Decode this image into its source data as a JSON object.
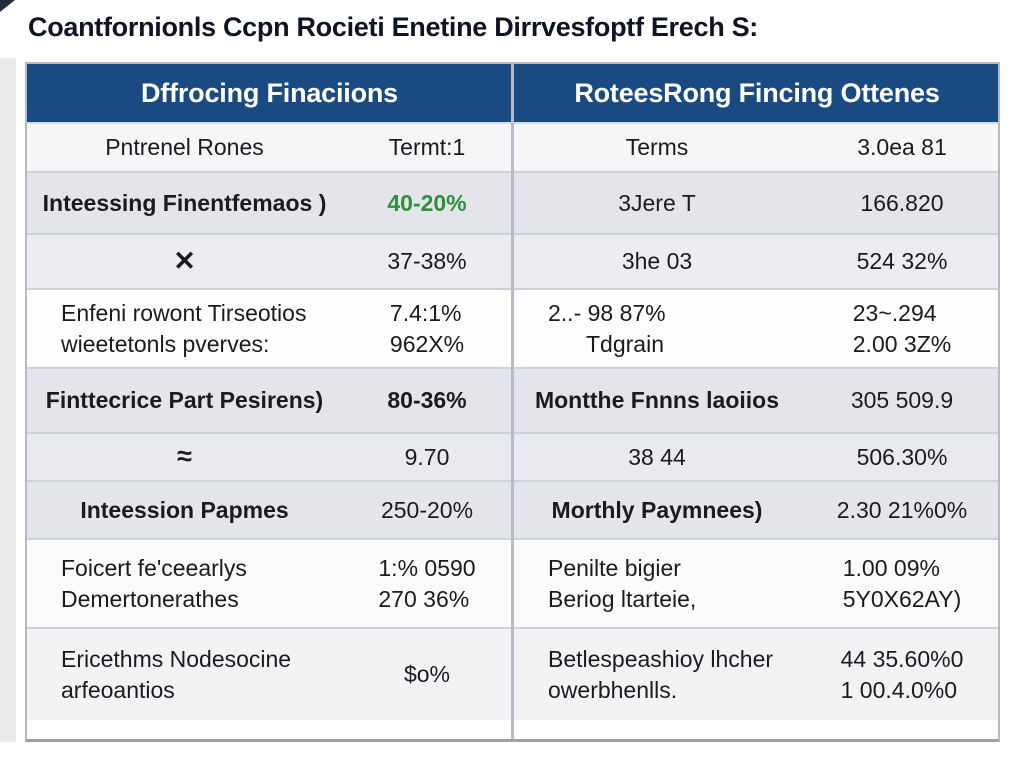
{
  "title": "Coantfornionls Ccpn Rocieti Enetine Dirrvesfoptf Erech S:",
  "colors": {
    "header_bg": "#1a4a82",
    "header_text": "#ffffff",
    "accent_green": "#2f8f3f"
  },
  "table": {
    "headers": [
      "Dffrocing Finaciions",
      "RoteesRong Fincing Ottenes"
    ],
    "rows": [
      {
        "cells": [
          {
            "l1": "Pntrenel Rones"
          },
          {
            "l1": "Termt:1"
          },
          {
            "l1": "Terms"
          },
          {
            "l1": "3.0ea 81"
          }
        ]
      },
      {
        "cells": [
          {
            "l1": "Inteessing Finentfemaos )"
          },
          {
            "l1": "40-20%"
          },
          {
            "l1": "3Jere T"
          },
          {
            "l1": "166.820"
          }
        ]
      },
      {
        "cells": [
          {
            "l1": "✕"
          },
          {
            "l1": "37-38%"
          },
          {
            "l1": "3he 03"
          },
          {
            "l1": "524 32%"
          }
        ]
      },
      {
        "cells": [
          {
            "l1": "Enfeni rowont Tirseotios",
            "l2": "wieetetonls pverves:"
          },
          {
            "l1": "7.4:1%",
            "l2": "962X%"
          },
          {
            "l1": "2..- 98 87%",
            "l2": "Tdgrain"
          },
          {
            "l1": "23~.294",
            "l2": "2.00 3Z%"
          }
        ]
      },
      {
        "cells": [
          {
            "l1": "Finttecrice Part Pesirens)"
          },
          {
            "l1": "80-36%"
          },
          {
            "l1": "Montthe Fnnns laoiios"
          },
          {
            "l1": "305 509.9"
          }
        ]
      },
      {
        "cells": [
          {
            "l1": "≈"
          },
          {
            "l1": "9.70"
          },
          {
            "l1": "38 44"
          },
          {
            "l1": "506.30%"
          }
        ]
      },
      {
        "cells": [
          {
            "l1": "Inteession Papmes"
          },
          {
            "l1": "250-20%"
          },
          {
            "l1": "Morthly Paymnees)"
          },
          {
            "l1": "2.30 21%0%"
          }
        ]
      },
      {
        "cells": [
          {
            "l1": "Foicert fe'ceearlys",
            "l2": "Demertonerathes"
          },
          {
            "l1": "1:% 0590",
            "l2": "270 36%"
          },
          {
            "l1": "Penilte bigier",
            "l2": "Beriog ltarteie,"
          },
          {
            "l1": "1.00 09%",
            "l2": "5Y0X62AY)"
          }
        ]
      },
      {
        "cells": [
          {
            "l1": "Ericethms Nodesocine",
            "l2": "arfeoantios"
          },
          {
            "l1": "$o%"
          },
          {
            "l1": "Betlespeashioy lhcher",
            "l2": "owerbhenlls."
          },
          {
            "l1": "44 35.60%0",
            "l2": "1 00.4.0%0"
          }
        ]
      }
    ]
  }
}
